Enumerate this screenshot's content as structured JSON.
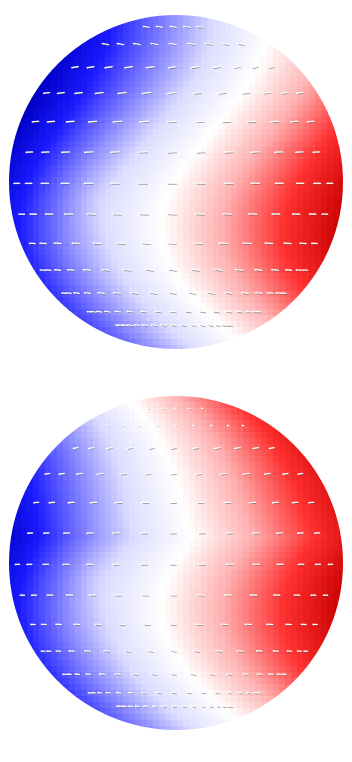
{
  "figure": {
    "panels": [
      {
        "id": "top",
        "colormap": [
          "#000018",
          "#0000c8",
          "#1a1aff",
          "#7a7aff",
          "#dcdcff",
          "#ffffff",
          "#ffb0b0",
          "#ff3030",
          "#c80000"
        ],
        "shading_bias": 0.0,
        "arrow_scale": 1.0,
        "arrow_color": "#ffffff"
      },
      {
        "id": "bottom",
        "colormap": [
          "#000018",
          "#0000c8",
          "#1a1aff",
          "#7a7aff",
          "#dcdcff",
          "#ffffff",
          "#ffb0b0",
          "#ff3030",
          "#c80000"
        ],
        "shading_bias": 0.35,
        "arrow_scale": 0.75,
        "arrow_color": "#ffffff"
      }
    ]
  }
}
